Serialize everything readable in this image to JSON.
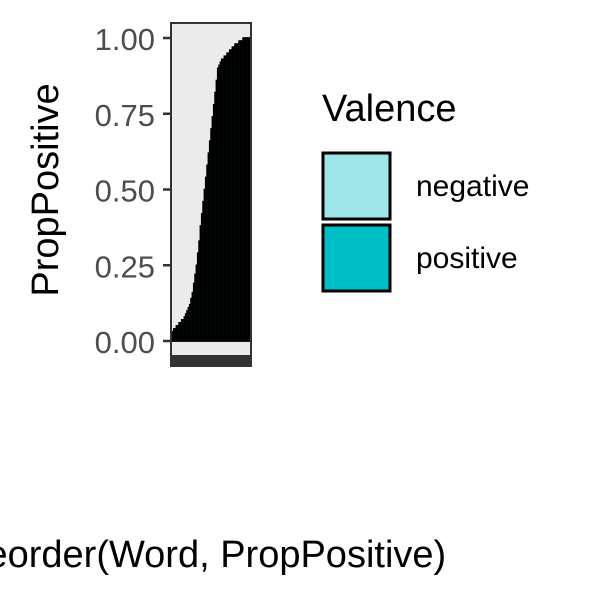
{
  "chart_data": {
    "type": "bar",
    "stacked": true,
    "fill_proportion": true,
    "title": "",
    "xlabel": "reorder(Word, PropPositive)",
    "ylabel": "PropPositive",
    "ylim": [
      0,
      1
    ],
    "yticks": [
      "0.00",
      "0.25",
      "0.50",
      "0.75",
      "1.00"
    ],
    "grid": false,
    "panel_background": "#ebebeb",
    "bar_outline_color": "#000000",
    "legend": {
      "title": "Valence",
      "position": "right",
      "entries": [
        {
          "label": "negative",
          "color": "#9ee6e8"
        },
        {
          "label": "positive",
          "color": "#00bfc4"
        }
      ]
    },
    "series": [
      {
        "name": "positive",
        "values": [
          0.02,
          0.03,
          0.04,
          0.04,
          0.05,
          0.05,
          0.06,
          0.06,
          0.07,
          0.07,
          0.08,
          0.09,
          0.1,
          0.11,
          0.12,
          0.14,
          0.16,
          0.19,
          0.22,
          0.25,
          0.29,
          0.33,
          0.38,
          0.42,
          0.46,
          0.5,
          0.54,
          0.58,
          0.62,
          0.66,
          0.7,
          0.74,
          0.78,
          0.82,
          0.86,
          0.9,
          0.91,
          0.92,
          0.93,
          0.93,
          0.94,
          0.94,
          0.95,
          0.95,
          0.96,
          0.96,
          0.97,
          0.97,
          0.98,
          0.98,
          0.98,
          0.99,
          0.99,
          0.99,
          1.0,
          1.0,
          1.0,
          1.0,
          1.0,
          1.0
        ]
      }
    ]
  }
}
